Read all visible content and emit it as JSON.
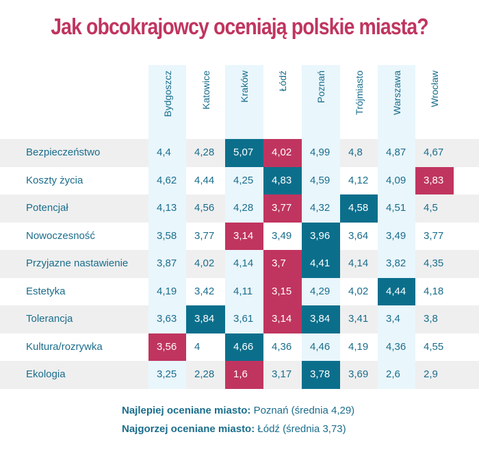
{
  "chart_data": {
    "type": "table",
    "title": "Jak obcokrajowcy oceniają polskie miasta?",
    "columns": [
      "Bydgoszcz",
      "Katowice",
      "Kraków",
      "Łódź",
      "Poznań",
      "Trójmiasto",
      "Warszawa",
      "Wrocław"
    ],
    "rows": [
      {
        "label": "Bezpieczeństwo",
        "values": [
          "4,4",
          "4,28",
          "5,07",
          "4,02",
          "4,99",
          "4,8",
          "4,87",
          "4,67"
        ],
        "best": [
          2
        ],
        "worst": [
          3
        ]
      },
      {
        "label": "Koszty życia",
        "values": [
          "4,62",
          "4,44",
          "4,25",
          "4,83",
          "4,59",
          "4,12",
          "4,09",
          "3,83"
        ],
        "best": [
          3
        ],
        "worst": [
          7
        ]
      },
      {
        "label": "Potencjał",
        "values": [
          "4,13",
          "4,56",
          "4,28",
          "3,77",
          "4,32",
          "4,58",
          "4,51",
          "4,5"
        ],
        "best": [
          5
        ],
        "worst": [
          3
        ]
      },
      {
        "label": "Nowoczesność",
        "values": [
          "3,58",
          "3,77",
          "3,14",
          "3,49",
          "3,96",
          "3,64",
          "3,49",
          "3,77"
        ],
        "best": [
          4
        ],
        "worst": [
          2
        ]
      },
      {
        "label": "Przyjazne nastawienie",
        "values": [
          "3,87",
          "4,02",
          "4,14",
          "3,7",
          "4,41",
          "4,14",
          "3,82",
          "4,35"
        ],
        "best": [
          4
        ],
        "worst": [
          3
        ]
      },
      {
        "label": "Estetyka",
        "values": [
          "4,19",
          "3,42",
          "4,11",
          "3,15",
          "4,29",
          "4,02",
          "4,44",
          "4,18"
        ],
        "best": [
          6
        ],
        "worst": [
          3
        ]
      },
      {
        "label": "Tolerancja",
        "values": [
          "3,63",
          "3,84",
          "3,61",
          "3,14",
          "3,84",
          "3,41",
          "3,4",
          "3,8"
        ],
        "best": [
          1,
          4
        ],
        "worst": [
          3
        ]
      },
      {
        "label": "Kultura/rozrywka",
        "values": [
          "3,56",
          "4",
          "4,66",
          "4,36",
          "4,46",
          "4,19",
          "4,36",
          "4,55"
        ],
        "best": [
          2
        ],
        "worst": [
          0
        ]
      },
      {
        "label": "Ekologia",
        "values": [
          "3,25",
          "2,28",
          "1,6",
          "3,17",
          "3,78",
          "3,69",
          "2,6",
          "2,9"
        ],
        "best": [
          4
        ],
        "worst": [
          2
        ]
      }
    ],
    "colors": {
      "best": "#0b6f8c",
      "worst": "#c0355f",
      "text": "#1a6d8c",
      "highlight_column": "#e9f6fc"
    }
  },
  "footer": {
    "best_label": "Najlepiej oceniane miasto:",
    "best_value": " Poznań (średnia 4,29)",
    "worst_label": "Najgorzej oceniane miasto:",
    "worst_value": " Łódź (średnia 3,73)"
  }
}
